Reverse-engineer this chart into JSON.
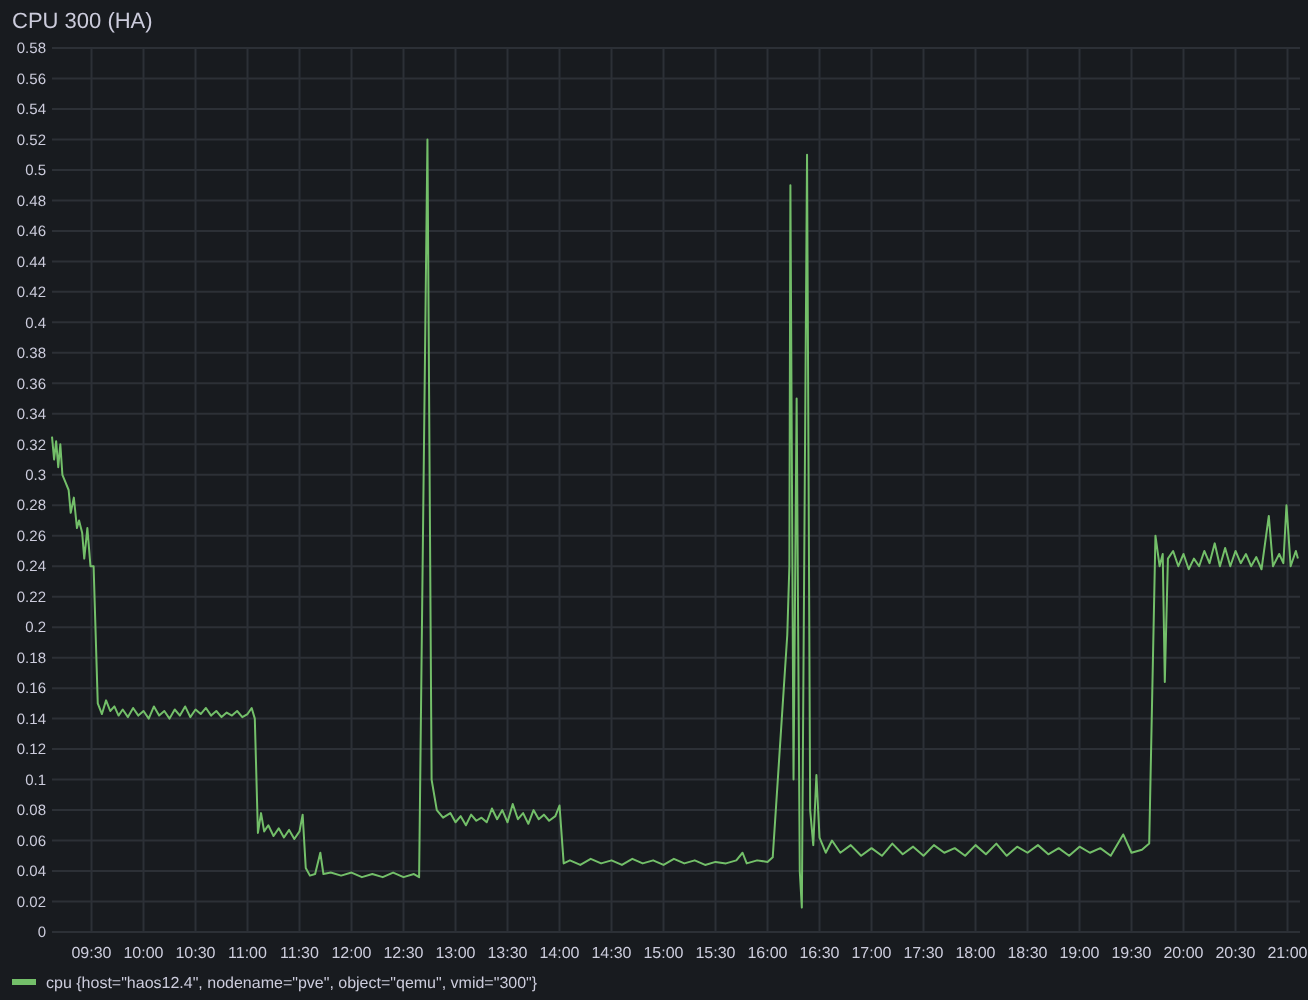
{
  "chart_data": {
    "type": "line",
    "title": "CPU 300 (HA)",
    "x": [
      9.12,
      9.14,
      9.16,
      9.18,
      9.2,
      9.22,
      9.25,
      9.28,
      9.3,
      9.33,
      9.36,
      9.38,
      9.41,
      9.43,
      9.46,
      9.49,
      9.52,
      9.56,
      9.6,
      9.64,
      9.68,
      9.72,
      9.76,
      9.8,
      9.85,
      9.9,
      9.95,
      10.0,
      10.05,
      10.1,
      10.15,
      10.2,
      10.25,
      10.3,
      10.35,
      10.4,
      10.45,
      10.5,
      10.55,
      10.6,
      10.65,
      10.7,
      10.75,
      10.8,
      10.85,
      10.9,
      10.95,
      11.0,
      11.04,
      11.07,
      11.1,
      11.13,
      11.16,
      11.2,
      11.25,
      11.3,
      11.35,
      11.4,
      11.45,
      11.5,
      11.53,
      11.56,
      11.6,
      11.65,
      11.7,
      11.73,
      11.8,
      11.9,
      12.0,
      12.1,
      12.2,
      12.3,
      12.4,
      12.5,
      12.6,
      12.65,
      12.73,
      12.77,
      12.82,
      12.88,
      12.95,
      13.0,
      13.05,
      13.1,
      13.15,
      13.2,
      13.25,
      13.3,
      13.35,
      13.4,
      13.45,
      13.5,
      13.55,
      13.6,
      13.65,
      13.7,
      13.75,
      13.8,
      13.85,
      13.9,
      13.96,
      14.0,
      14.04,
      14.1,
      14.2,
      14.3,
      14.4,
      14.5,
      14.6,
      14.7,
      14.8,
      14.9,
      15.0,
      15.1,
      15.2,
      15.3,
      15.4,
      15.5,
      15.6,
      15.7,
      15.76,
      15.8,
      15.9,
      16.0,
      16.05,
      16.19,
      16.21,
      16.22,
      16.25,
      16.28,
      16.31,
      16.33,
      16.38,
      16.41,
      16.44,
      16.47,
      16.5,
      16.56,
      16.62,
      16.7,
      16.8,
      16.9,
      17.0,
      17.1,
      17.2,
      17.3,
      17.4,
      17.5,
      17.6,
      17.7,
      17.8,
      17.9,
      18.0,
      18.1,
      18.2,
      18.3,
      18.4,
      18.5,
      18.6,
      18.7,
      18.8,
      18.9,
      19.0,
      19.1,
      19.2,
      19.3,
      19.42,
      19.5,
      19.6,
      19.67,
      19.73,
      19.77,
      19.8,
      19.82,
      19.85,
      19.9,
      19.95,
      20.0,
      20.05,
      20.1,
      20.15,
      20.2,
      20.25,
      20.3,
      20.35,
      20.4,
      20.45,
      20.5,
      20.55,
      20.6,
      20.65,
      20.7,
      20.75,
      20.82,
      20.86,
      20.92,
      20.96,
      20.99,
      21.03,
      21.08,
      21.1
    ],
    "series": [
      {
        "name": "cpu {host=\"haos12.4\", nodename=\"pve\", object=\"qemu\", vmid=\"300\"}",
        "color": "#73bf69",
        "values": [
          0.325,
          0.31,
          0.322,
          0.305,
          0.32,
          0.3,
          0.295,
          0.29,
          0.275,
          0.285,
          0.265,
          0.27,
          0.262,
          0.245,
          0.265,
          0.24,
          0.24,
          0.15,
          0.143,
          0.152,
          0.145,
          0.148,
          0.142,
          0.146,
          0.141,
          0.147,
          0.142,
          0.145,
          0.14,
          0.148,
          0.142,
          0.145,
          0.14,
          0.146,
          0.142,
          0.148,
          0.141,
          0.146,
          0.143,
          0.147,
          0.142,
          0.145,
          0.141,
          0.144,
          0.142,
          0.145,
          0.141,
          0.143,
          0.147,
          0.14,
          0.065,
          0.078,
          0.066,
          0.07,
          0.063,
          0.068,
          0.062,
          0.067,
          0.061,
          0.066,
          0.077,
          0.042,
          0.037,
          0.038,
          0.052,
          0.038,
          0.039,
          0.037,
          0.039,
          0.036,
          0.038,
          0.036,
          0.039,
          0.036,
          0.038,
          0.036,
          0.52,
          0.1,
          0.08,
          0.075,
          0.078,
          0.072,
          0.076,
          0.07,
          0.077,
          0.073,
          0.075,
          0.072,
          0.081,
          0.074,
          0.08,
          0.072,
          0.084,
          0.074,
          0.078,
          0.071,
          0.08,
          0.074,
          0.077,
          0.073,
          0.076,
          0.083,
          0.045,
          0.047,
          0.044,
          0.048,
          0.045,
          0.047,
          0.044,
          0.048,
          0.045,
          0.047,
          0.044,
          0.048,
          0.045,
          0.047,
          0.044,
          0.046,
          0.045,
          0.047,
          0.052,
          0.045,
          0.047,
          0.046,
          0.049,
          0.195,
          0.24,
          0.49,
          0.1,
          0.35,
          0.04,
          0.016,
          0.51,
          0.08,
          0.057,
          0.103,
          0.062,
          0.052,
          0.06,
          0.052,
          0.057,
          0.05,
          0.055,
          0.05,
          0.058,
          0.051,
          0.056,
          0.05,
          0.057,
          0.052,
          0.055,
          0.05,
          0.057,
          0.051,
          0.058,
          0.05,
          0.056,
          0.052,
          0.057,
          0.051,
          0.055,
          0.05,
          0.056,
          0.052,
          0.055,
          0.05,
          0.064,
          0.052,
          0.054,
          0.058,
          0.26,
          0.24,
          0.248,
          0.164,
          0.245,
          0.25,
          0.24,
          0.248,
          0.238,
          0.245,
          0.24,
          0.25,
          0.242,
          0.255,
          0.24,
          0.252,
          0.24,
          0.25,
          0.242,
          0.248,
          0.24,
          0.246,
          0.238,
          0.273,
          0.24,
          0.248,
          0.242,
          0.28,
          0.24,
          0.25,
          0.245
        ]
      }
    ],
    "xlim": [
      9.12,
      21.12
    ],
    "xticks": [
      {
        "value": 9.5,
        "label": "09:30"
      },
      {
        "value": 10,
        "label": "10:00"
      },
      {
        "value": 10.5,
        "label": "10:30"
      },
      {
        "value": 11,
        "label": "11:00"
      },
      {
        "value": 11.5,
        "label": "11:30"
      },
      {
        "value": 12,
        "label": "12:00"
      },
      {
        "value": 12.5,
        "label": "12:30"
      },
      {
        "value": 13,
        "label": "13:00"
      },
      {
        "value": 13.5,
        "label": "13:30"
      },
      {
        "value": 14,
        "label": "14:00"
      },
      {
        "value": 14.5,
        "label": "14:30"
      },
      {
        "value": 15,
        "label": "15:00"
      },
      {
        "value": 15.5,
        "label": "15:30"
      },
      {
        "value": 16,
        "label": "16:00"
      },
      {
        "value": 16.5,
        "label": "16:30"
      },
      {
        "value": 17,
        "label": "17:00"
      },
      {
        "value": 17.5,
        "label": "17:30"
      },
      {
        "value": 18,
        "label": "18:00"
      },
      {
        "value": 18.5,
        "label": "18:30"
      },
      {
        "value": 19,
        "label": "19:00"
      },
      {
        "value": 19.5,
        "label": "19:30"
      },
      {
        "value": 20,
        "label": "20:00"
      },
      {
        "value": 20.5,
        "label": "20:30"
      },
      {
        "value": 21,
        "label": "21:00"
      }
    ],
    "ylim": [
      0,
      0.58
    ],
    "yticks": [
      0,
      0.02,
      0.04,
      0.06,
      0.08,
      0.1,
      0.12,
      0.14,
      0.16,
      0.18,
      0.2,
      0.22,
      0.24,
      0.26,
      0.28,
      0.3,
      0.32,
      0.34,
      0.36,
      0.38,
      0.4,
      0.42,
      0.44,
      0.46,
      0.48,
      0.5,
      0.52,
      0.54,
      0.56,
      0.58
    ],
    "grid": true,
    "legend": "bottom"
  }
}
